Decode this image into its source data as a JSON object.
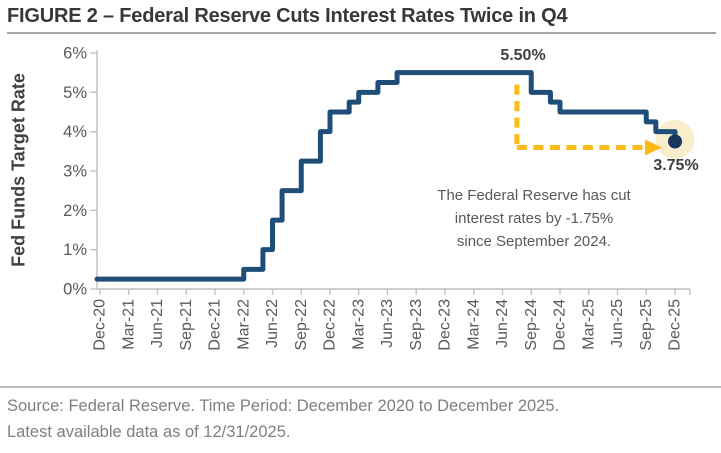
{
  "header": {
    "title": "FIGURE 2 – Federal Reserve Cuts Interest Rates Twice in Q4"
  },
  "chart_data": {
    "type": "line",
    "subtype": "step",
    "title": "FIGURE 2 – Federal Reserve Cuts Interest Rates Twice in Q4",
    "ylabel": "Fed Funds Target Rate",
    "xlabel": "",
    "ylim": [
      0,
      6
    ],
    "y_tick_labels": [
      "0%",
      "1%",
      "2%",
      "3%",
      "4%",
      "5%",
      "6%"
    ],
    "x_tick_labels": [
      "Dec-20",
      "Mar-21",
      "Jun-21",
      "Sep-21",
      "Dec-21",
      "Mar-22",
      "Jun-22",
      "Sep-22",
      "Dec-22",
      "Mar-23",
      "Jun-23",
      "Sep-23",
      "Dec-23",
      "Mar-24",
      "Jun-24",
      "Sep-24",
      "Dec-24",
      "Mar-25",
      "Jun-25",
      "Sep-25",
      "Dec-25"
    ],
    "x_tick_interval_months": 3,
    "months_total": 60,
    "grid": false,
    "legend": false,
    "series": [
      {
        "name": "Fed Funds Target Rate",
        "color": "#1F4E79",
        "step_points": [
          {
            "month": 0,
            "date": "Dec-20",
            "rate": 0.25
          },
          {
            "month": 15,
            "date": "Mar-22",
            "rate": 0.5
          },
          {
            "month": 17,
            "date": "May-22",
            "rate": 1.0
          },
          {
            "month": 18,
            "date": "Jun-22",
            "rate": 1.75
          },
          {
            "month": 19,
            "date": "Jul-22",
            "rate": 2.5
          },
          {
            "month": 21,
            "date": "Sep-22",
            "rate": 3.25
          },
          {
            "month": 23,
            "date": "Nov-22",
            "rate": 4.0
          },
          {
            "month": 24,
            "date": "Dec-22",
            "rate": 4.5
          },
          {
            "month": 26,
            "date": "Feb-23",
            "rate": 4.75
          },
          {
            "month": 27,
            "date": "Mar-23",
            "rate": 5.0
          },
          {
            "month": 29,
            "date": "May-23",
            "rate": 5.25
          },
          {
            "month": 31,
            "date": "Jul-23",
            "rate": 5.5
          },
          {
            "month": 45,
            "date": "Sep-24",
            "rate": 5.0
          },
          {
            "month": 47,
            "date": "Nov-24",
            "rate": 4.75
          },
          {
            "month": 48,
            "date": "Dec-24",
            "rate": 4.5
          },
          {
            "month": 57,
            "date": "Sep-25",
            "rate": 4.25
          },
          {
            "month": 58,
            "date": "Oct-25",
            "rate": 4.0
          },
          {
            "month": 60,
            "date": "Dec-25",
            "rate": 3.75
          }
        ]
      }
    ],
    "annotations": {
      "peak_label": "5.50%",
      "peak_rate": 5.5,
      "end_label": "3.75%",
      "end_rate": 3.75,
      "note_lines": [
        "The Federal Reserve has cut",
        "interest rates by -1.75%",
        "since September 2024."
      ],
      "callout_from_month": 43.5
    },
    "colors": {
      "line": "#1F4E79",
      "dashed_arrow": "#FCBB14",
      "endpoint_halo": "#FAEDCC",
      "endpoint_dot": "#17375E",
      "axis": "#BFBFBF",
      "tick_text": "#595959"
    }
  },
  "footer": {
    "line1": "Source: Federal Reserve. Time Period: December 2020 to December 2025.",
    "line2": "Latest available data as of 12/31/2025."
  }
}
